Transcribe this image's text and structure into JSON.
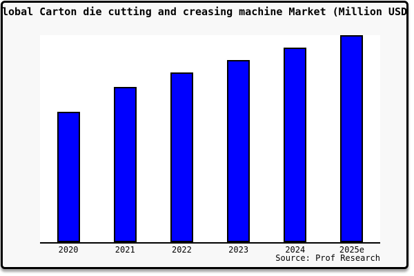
{
  "title": "Global Carton die cutting and creasing machine Market (Million USD)",
  "source": "Source: Prof Research",
  "colors": {
    "bar_fill": "#0000ff",
    "bar_border": "#000000",
    "frame_border": "#000000",
    "frame_background": "#f8f8f8",
    "plot_background": "#ffffff",
    "text": "#000000"
  },
  "chart_data": {
    "type": "bar",
    "title": "Global Carton die cutting and creasing machine Market (Million USD)",
    "categories": [
      "2020",
      "2021",
      "2022",
      "2023",
      "2024",
      "2025e"
    ],
    "values": [
      63,
      75,
      82,
      88,
      94,
      100
    ],
    "xlabel": "",
    "ylabel": "",
    "ylim": [
      0,
      100
    ],
    "y_axis_visible": false,
    "grid": false,
    "legend": false,
    "annotation": "Source: Prof Research"
  }
}
